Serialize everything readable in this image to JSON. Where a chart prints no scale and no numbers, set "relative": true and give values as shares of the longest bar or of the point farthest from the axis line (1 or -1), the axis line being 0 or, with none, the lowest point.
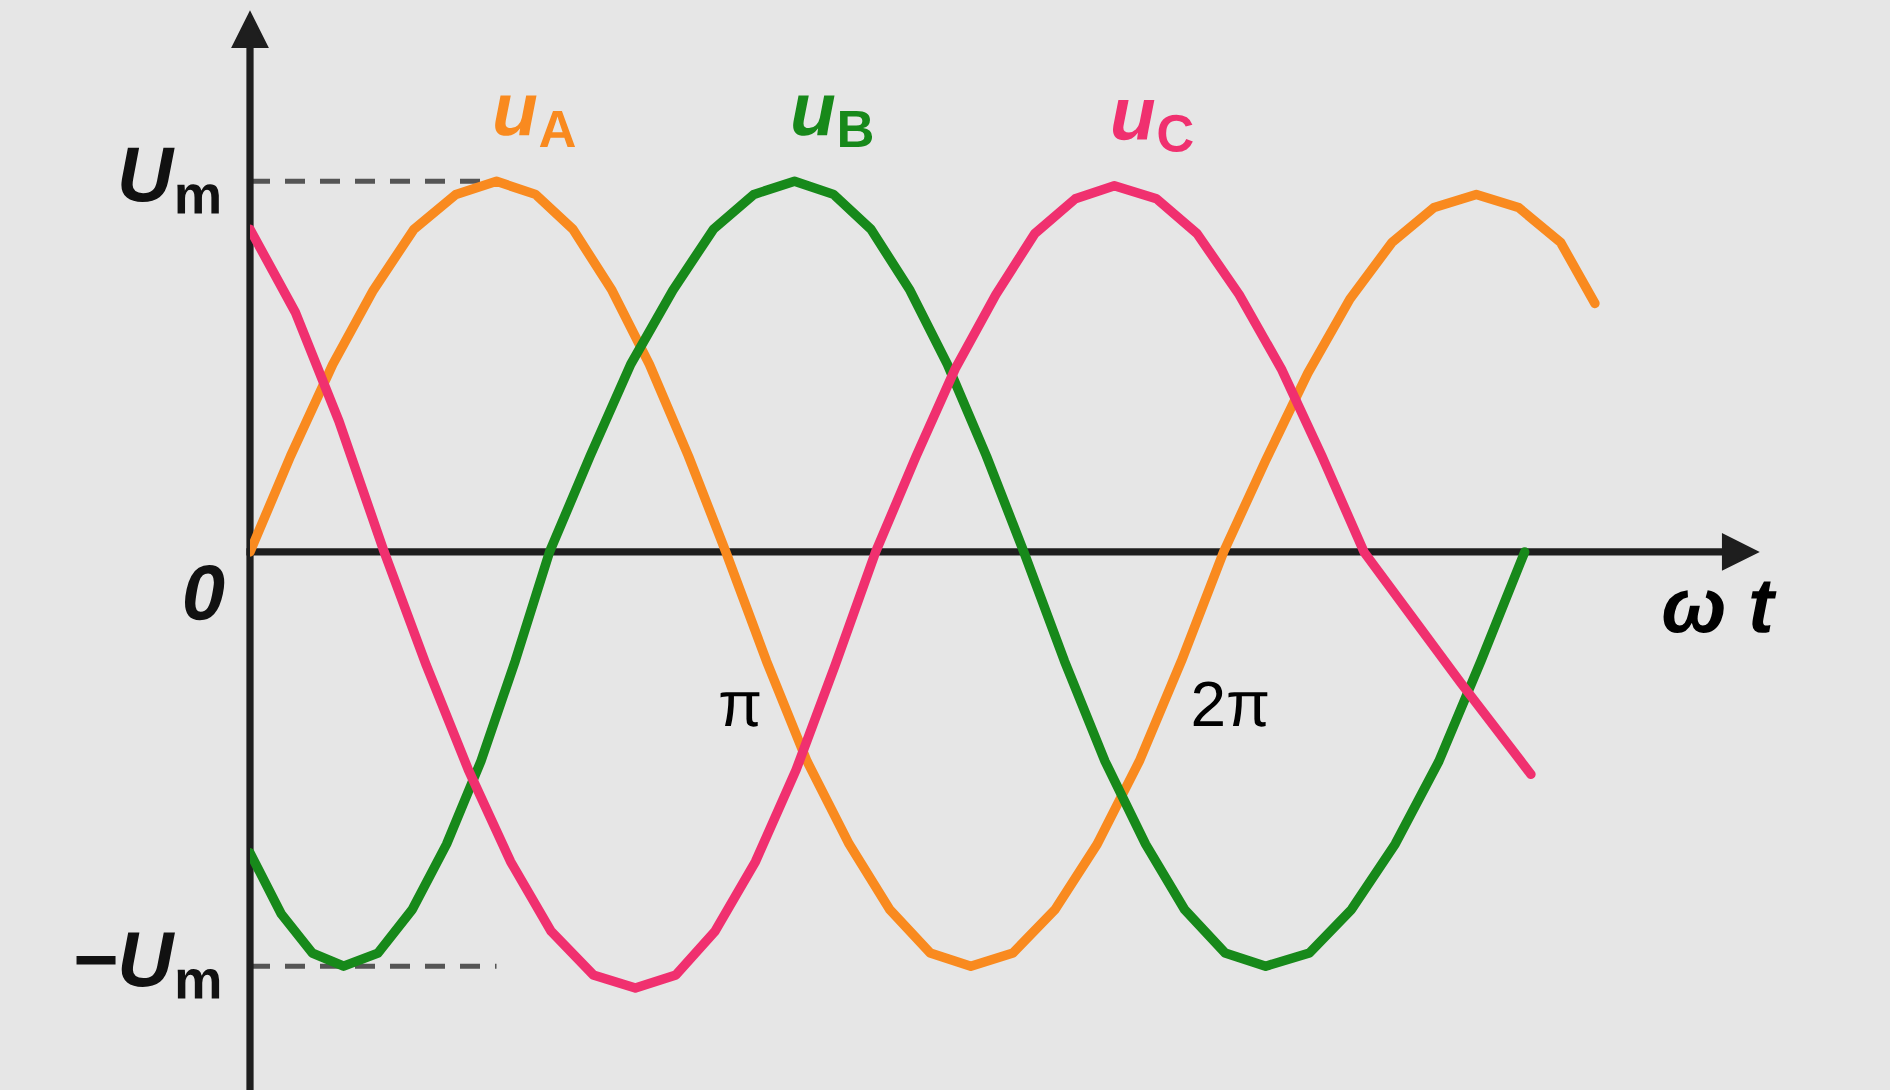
{
  "chart_data": {
    "type": "line",
    "relative": true,
    "xlabel": "ω t",
    "xlim": [
      0,
      9.55
    ],
    "xticks": [
      {
        "value": 3.1416,
        "label": "π"
      },
      {
        "value": 6.2832,
        "label": "2π"
      }
    ],
    "annotations": [
      {
        "text": "0",
        "x": 0,
        "y": 0
      }
    ],
    "ref_lines": [
      {
        "axis": "y",
        "value": 0.85,
        "label": "U$_{m}$",
        "color": "#555555",
        "line_style": "dashed"
      },
      {
        "axis": "y",
        "value": -0.95,
        "label": "−U$_{m}$",
        "color": "#555555",
        "line_style": "dashed"
      }
    ],
    "series": [
      {
        "name": "u$_{A}$",
        "color": "#f98a1f",
        "x": [
          0,
          0.26,
          0.53,
          0.79,
          1.05,
          1.32,
          1.58,
          1.83,
          2.07,
          2.32,
          2.56,
          2.81,
          3.05,
          3.31,
          3.57,
          3.84,
          4.1,
          4.36,
          4.62,
          4.89,
          5.16,
          5.43,
          5.7,
          5.97,
          6.24,
          6.51,
          6.78,
          7.05,
          7.32,
          7.59,
          7.86,
          8.13,
          8.4,
          8.62
        ],
        "values": [
          0,
          0.22,
          0.43,
          0.6,
          0.74,
          0.82,
          0.85,
          0.82,
          0.74,
          0.6,
          0.43,
          0.22,
          0,
          -0.25,
          -0.48,
          -0.67,
          -0.82,
          -0.92,
          -0.95,
          -0.92,
          -0.82,
          -0.67,
          -0.48,
          -0.25,
          0,
          0.21,
          0.41,
          0.58,
          0.71,
          0.79,
          0.82,
          0.79,
          0.71,
          0.57
        ]
      },
      {
        "name": "u$_{B}$",
        "color": "#17891a",
        "x": [
          0,
          0.2,
          0.4,
          0.6,
          0.82,
          1.04,
          1.26,
          1.48,
          1.7,
          1.92,
          2.18,
          2.44,
          2.71,
          2.97,
          3.23,
          3.49,
          3.74,
          3.98,
          4.23,
          4.47,
          4.72,
          4.96,
          5.22,
          5.48,
          5.74,
          5.99,
          6.25,
          6.51,
          6.79,
          7.06,
          7.34,
          7.62,
          7.89,
          8.17
        ],
        "values": [
          -0.69,
          -0.83,
          -0.92,
          -0.95,
          -0.92,
          -0.82,
          -0.67,
          -0.48,
          -0.25,
          0,
          0.22,
          0.43,
          0.6,
          0.74,
          0.82,
          0.85,
          0.82,
          0.74,
          0.6,
          0.43,
          0.22,
          0,
          -0.25,
          -0.48,
          -0.67,
          -0.82,
          -0.92,
          -0.95,
          -0.92,
          -0.82,
          -0.67,
          -0.48,
          -0.25,
          0
        ]
      },
      {
        "name": "u$_{C}$",
        "color": "#f0306f",
        "x": [
          0,
          0.29,
          0.57,
          0.86,
          1.13,
          1.4,
          1.67,
          1.93,
          2.2,
          2.47,
          2.73,
          2.98,
          3.24,
          3.5,
          3.75,
          4.01,
          4.27,
          4.52,
          4.78,
          5.03,
          5.29,
          5.54,
          5.81,
          6.07,
          6.34,
          6.61,
          6.87,
          7.14,
          7.45,
          7.76,
          8.21
        ],
        "values": [
          0.74,
          0.55,
          0.3,
          0,
          -0.26,
          -0.5,
          -0.71,
          -0.87,
          -0.97,
          -1,
          -0.97,
          -0.87,
          -0.71,
          -0.5,
          -0.26,
          0,
          0.22,
          0.42,
          0.59,
          0.73,
          0.81,
          0.84,
          0.81,
          0.73,
          0.59,
          0.42,
          0.22,
          0,
          -0.15,
          -0.3,
          -0.51
        ]
      }
    ]
  }
}
